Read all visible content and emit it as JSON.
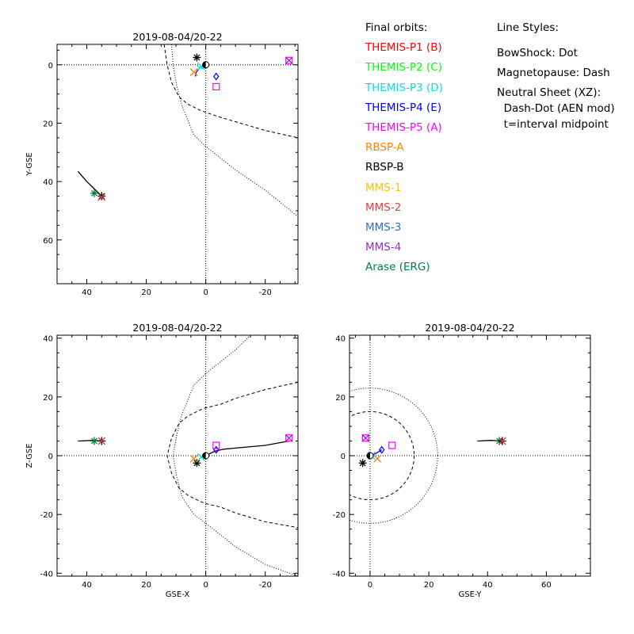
{
  "colors": {
    "THEMIS-P1": "#ff0000",
    "THEMIS-P2": "#00ff00",
    "THEMIS-P3": "#00e0e0",
    "THEMIS-P4": "#0000ff",
    "THEMIS-P5": "#ff00ff",
    "RBSP-A": "#ff8000",
    "RBSP-B": "#000000",
    "MMS-1": "#ffc000",
    "MMS-2": "#e04040",
    "MMS-3": "#3070c0",
    "MMS-4": "#9030c0",
    "Arase": "#008040"
  },
  "legend": {
    "title": "Final orbits:",
    "items": [
      {
        "label": "THEMIS-P1 (B)",
        "key": "THEMIS-P1"
      },
      {
        "label": "THEMIS-P2 (C)",
        "key": "THEMIS-P2"
      },
      {
        "label": "THEMIS-P3 (D)",
        "key": "THEMIS-P3"
      },
      {
        "label": "THEMIS-P4 (E)",
        "key": "THEMIS-P4"
      },
      {
        "label": "THEMIS-P5 (A)",
        "key": "THEMIS-P5"
      },
      {
        "label": "RBSP-A",
        "key": "RBSP-A"
      },
      {
        "label": "RBSP-B",
        "key": "RBSP-B"
      },
      {
        "label": "MMS-1",
        "key": "MMS-1"
      },
      {
        "label": "MMS-2",
        "key": "MMS-2"
      },
      {
        "label": "MMS-3",
        "key": "MMS-3"
      },
      {
        "label": "MMS-4",
        "key": "MMS-4"
      },
      {
        "label": "Arase (ERG)",
        "key": "Arase"
      }
    ]
  },
  "line_styles": {
    "title": "Line Styles:",
    "lines": [
      "BowShock: Dot",
      "Magnetopause: Dash",
      "Neutral Sheet (XZ):",
      "  Dash-Dot (AEN mod)",
      "  t=interval midpoint"
    ]
  },
  "chart_data": [
    {
      "type": "scatter",
      "title": "2019-08-04/20-22",
      "xlabel": "",
      "ylabel": "Y-GSE",
      "xlim": [
        50,
        -31
      ],
      "ylim": [
        75,
        -7
      ],
      "xticks": [
        40,
        20,
        0,
        -20
      ],
      "yticks": [
        0,
        20,
        40,
        60
      ],
      "grid": false,
      "zero_lines": true,
      "bowshock": [
        [
          11.5,
          -7
        ],
        [
          11,
          0
        ],
        [
          9.8,
          7
        ],
        [
          8,
          14
        ],
        [
          4,
          24
        ],
        [
          0,
          28
        ],
        [
          -5,
          32
        ],
        [
          -10,
          36
        ],
        [
          -20,
          43
        ],
        [
          -31,
          52
        ]
      ],
      "magnetopause": [
        [
          14,
          -7
        ],
        [
          13,
          0
        ],
        [
          11.5,
          6
        ],
        [
          9,
          11
        ],
        [
          6,
          13.5
        ],
        [
          2,
          15.5
        ],
        [
          0,
          16.3
        ],
        [
          -5,
          18
        ],
        [
          -10,
          19.5
        ],
        [
          -20,
          22.5
        ],
        [
          -31,
          25
        ]
      ],
      "tracks": [
        {
          "key": "RBSP-B",
          "points": [
            [
              43,
              36.5
            ],
            [
              40,
              40
            ],
            [
              37,
              43
            ],
            [
              34.5,
              45.5
            ]
          ]
        },
        {
          "key": "THEMIS-P4",
          "points": [
            [
              0,
              -0.5
            ],
            [
              2,
              1
            ],
            [
              3.2,
              2.5
            ],
            [
              3.5,
              4
            ]
          ]
        },
        {
          "key": "THEMIS-P3",
          "points": [
            [
              3,
              0.2
            ],
            [
              2,
              1
            ],
            [
              1,
              1.3
            ]
          ]
        }
      ],
      "markers": [
        {
          "key": "Arase",
          "shape": "star",
          "x": 37.5,
          "y": 44
        },
        {
          "key": "RBSP-B",
          "shape": "star",
          "x": 35,
          "y": 45
        },
        {
          "key": "MMS-2",
          "shape": "x",
          "x": 35,
          "y": 45.3
        },
        {
          "key": "RBSP-B",
          "shape": "star",
          "x": 3,
          "y": -2.5
        },
        {
          "key": "THEMIS-P3",
          "shape": "x",
          "x": 1.5,
          "y": 0.5
        },
        {
          "key": "RBSP-A",
          "shape": "x",
          "x": 4,
          "y": 2.5
        },
        {
          "key": "RBSP-B",
          "shape": "earth",
          "x": 0,
          "y": 0
        },
        {
          "key": "THEMIS-P4",
          "shape": "diamond",
          "x": -3.5,
          "y": 4
        },
        {
          "key": "THEMIS-P5",
          "shape": "square",
          "x": -3.5,
          "y": 7.5
        },
        {
          "key": "THEMIS-P5",
          "shape": "square",
          "x": -28,
          "y": -1.5
        },
        {
          "key": "MMS-4",
          "shape": "x",
          "x": -28,
          "y": -1.5
        }
      ]
    },
    {
      "type": "scatter",
      "title": "2019-08-04/20-22",
      "xlabel": "GSE-X",
      "ylabel": "Z-GSE",
      "xlim": [
        50,
        -31
      ],
      "ylim": [
        -41,
        41
      ],
      "xticks": [
        40,
        20,
        0,
        -20
      ],
      "yticks": [
        -40,
        -20,
        0,
        20,
        40
      ],
      "grid": false,
      "zero_lines": true,
      "bowshock": [
        [
          -15,
          41
        ],
        [
          -10,
          36
        ],
        [
          -5,
          32
        ],
        [
          0,
          28
        ],
        [
          4,
          24
        ],
        [
          8,
          14
        ],
        [
          9.8,
          7
        ],
        [
          11,
          0
        ],
        [
          9.8,
          -7
        ],
        [
          8,
          -14
        ],
        [
          4,
          -20
        ],
        [
          0,
          -23
        ],
        [
          -5,
          -27
        ],
        [
          -10,
          -31
        ],
        [
          -20,
          -37
        ],
        [
          -31,
          -41
        ]
      ],
      "magnetopause": [
        [
          -31,
          25
        ],
        [
          -20,
          22.5
        ],
        [
          -10,
          19.5
        ],
        [
          -5,
          17.5
        ],
        [
          0,
          16.3
        ],
        [
          2,
          15.5
        ],
        [
          6,
          13.5
        ],
        [
          9,
          11
        ],
        [
          11.5,
          6
        ],
        [
          13,
          0
        ],
        [
          11.5,
          -6
        ],
        [
          9,
          -11
        ],
        [
          6,
          -13.5
        ],
        [
          2,
          -15.5
        ],
        [
          0,
          -16.3
        ],
        [
          -5,
          -17.5
        ],
        [
          -10,
          -19.5
        ],
        [
          -20,
          -22.5
        ],
        [
          -31,
          -24.5
        ]
      ],
      "tracks": [
        {
          "key": "RBSP-B",
          "points": [
            [
              43,
              5
            ],
            [
              38,
              5.2
            ],
            [
              34.5,
              5
            ]
          ]
        },
        {
          "key": "RBSP-B",
          "points": [
            [
              0,
              0
            ],
            [
              -3,
              1.5
            ],
            [
              -6,
              2.2
            ],
            [
              -10,
              2.6
            ],
            [
              -20,
              3.5
            ],
            [
              -28,
              5
            ]
          ]
        }
      ],
      "markers": [
        {
          "key": "Arase",
          "shape": "star",
          "x": 37.5,
          "y": 5
        },
        {
          "key": "RBSP-B",
          "shape": "star",
          "x": 35,
          "y": 5
        },
        {
          "key": "MMS-2",
          "shape": "x",
          "x": 35,
          "y": 5
        },
        {
          "key": "RBSP-B",
          "shape": "star",
          "x": 3,
          "y": -2.5
        },
        {
          "key": "RBSP-A",
          "shape": "x",
          "x": 4,
          "y": -1
        },
        {
          "key": "THEMIS-P3",
          "shape": "x",
          "x": 1.5,
          "y": -0.5
        },
        {
          "key": "RBSP-B",
          "shape": "earth",
          "x": 0,
          "y": 0
        },
        {
          "key": "THEMIS-P4",
          "shape": "diamond",
          "x": -3.5,
          "y": 2
        },
        {
          "key": "THEMIS-P5",
          "shape": "square",
          "x": -3.5,
          "y": 3.5
        },
        {
          "key": "THEMIS-P5",
          "shape": "square",
          "x": -28,
          "y": 6
        },
        {
          "key": "MMS-4",
          "shape": "x",
          "x": -28,
          "y": 6
        }
      ]
    },
    {
      "type": "scatter",
      "title": "2019-08-04/20-22",
      "xlabel": "GSE-Y",
      "ylabel": "",
      "xlim": [
        -7,
        75
      ],
      "ylim": [
        -41,
        41
      ],
      "xticks": [
        0,
        20,
        40,
        60
      ],
      "yticks": [
        -40,
        -20,
        0,
        20,
        40
      ],
      "grid": false,
      "zero_lines": true,
      "bowshock_circle_radius": 23,
      "magnetopause_circle_radius": 15,
      "tracks": [
        {
          "key": "RBSP-B",
          "points": [
            [
              36.5,
              5
            ],
            [
              41,
              5.2
            ],
            [
              45,
              5
            ]
          ]
        },
        {
          "key": "THEMIS-P4",
          "points": [
            [
              0,
              0
            ],
            [
              2,
              0.8
            ],
            [
              4,
              2
            ]
          ]
        }
      ],
      "markers": [
        {
          "key": "Arase",
          "shape": "star",
          "x": 44,
          "y": 5
        },
        {
          "key": "RBSP-B",
          "shape": "star",
          "x": 45,
          "y": 5
        },
        {
          "key": "MMS-2",
          "shape": "x",
          "x": 45,
          "y": 5
        },
        {
          "key": "RBSP-B",
          "shape": "star",
          "x": -2.5,
          "y": -2.5
        },
        {
          "key": "THEMIS-P3",
          "shape": "x",
          "x": 0.5,
          "y": 0
        },
        {
          "key": "RBSP-A",
          "shape": "x",
          "x": 2.5,
          "y": -1
        },
        {
          "key": "RBSP-B",
          "shape": "earth",
          "x": 0,
          "y": 0
        },
        {
          "key": "THEMIS-P4",
          "shape": "diamond",
          "x": 4,
          "y": 2
        },
        {
          "key": "THEMIS-P5",
          "shape": "square",
          "x": 7.5,
          "y": 3.5
        },
        {
          "key": "THEMIS-P5",
          "shape": "square",
          "x": -1.5,
          "y": 6
        },
        {
          "key": "MMS-4",
          "shape": "x",
          "x": -1.5,
          "y": 6
        }
      ]
    }
  ]
}
